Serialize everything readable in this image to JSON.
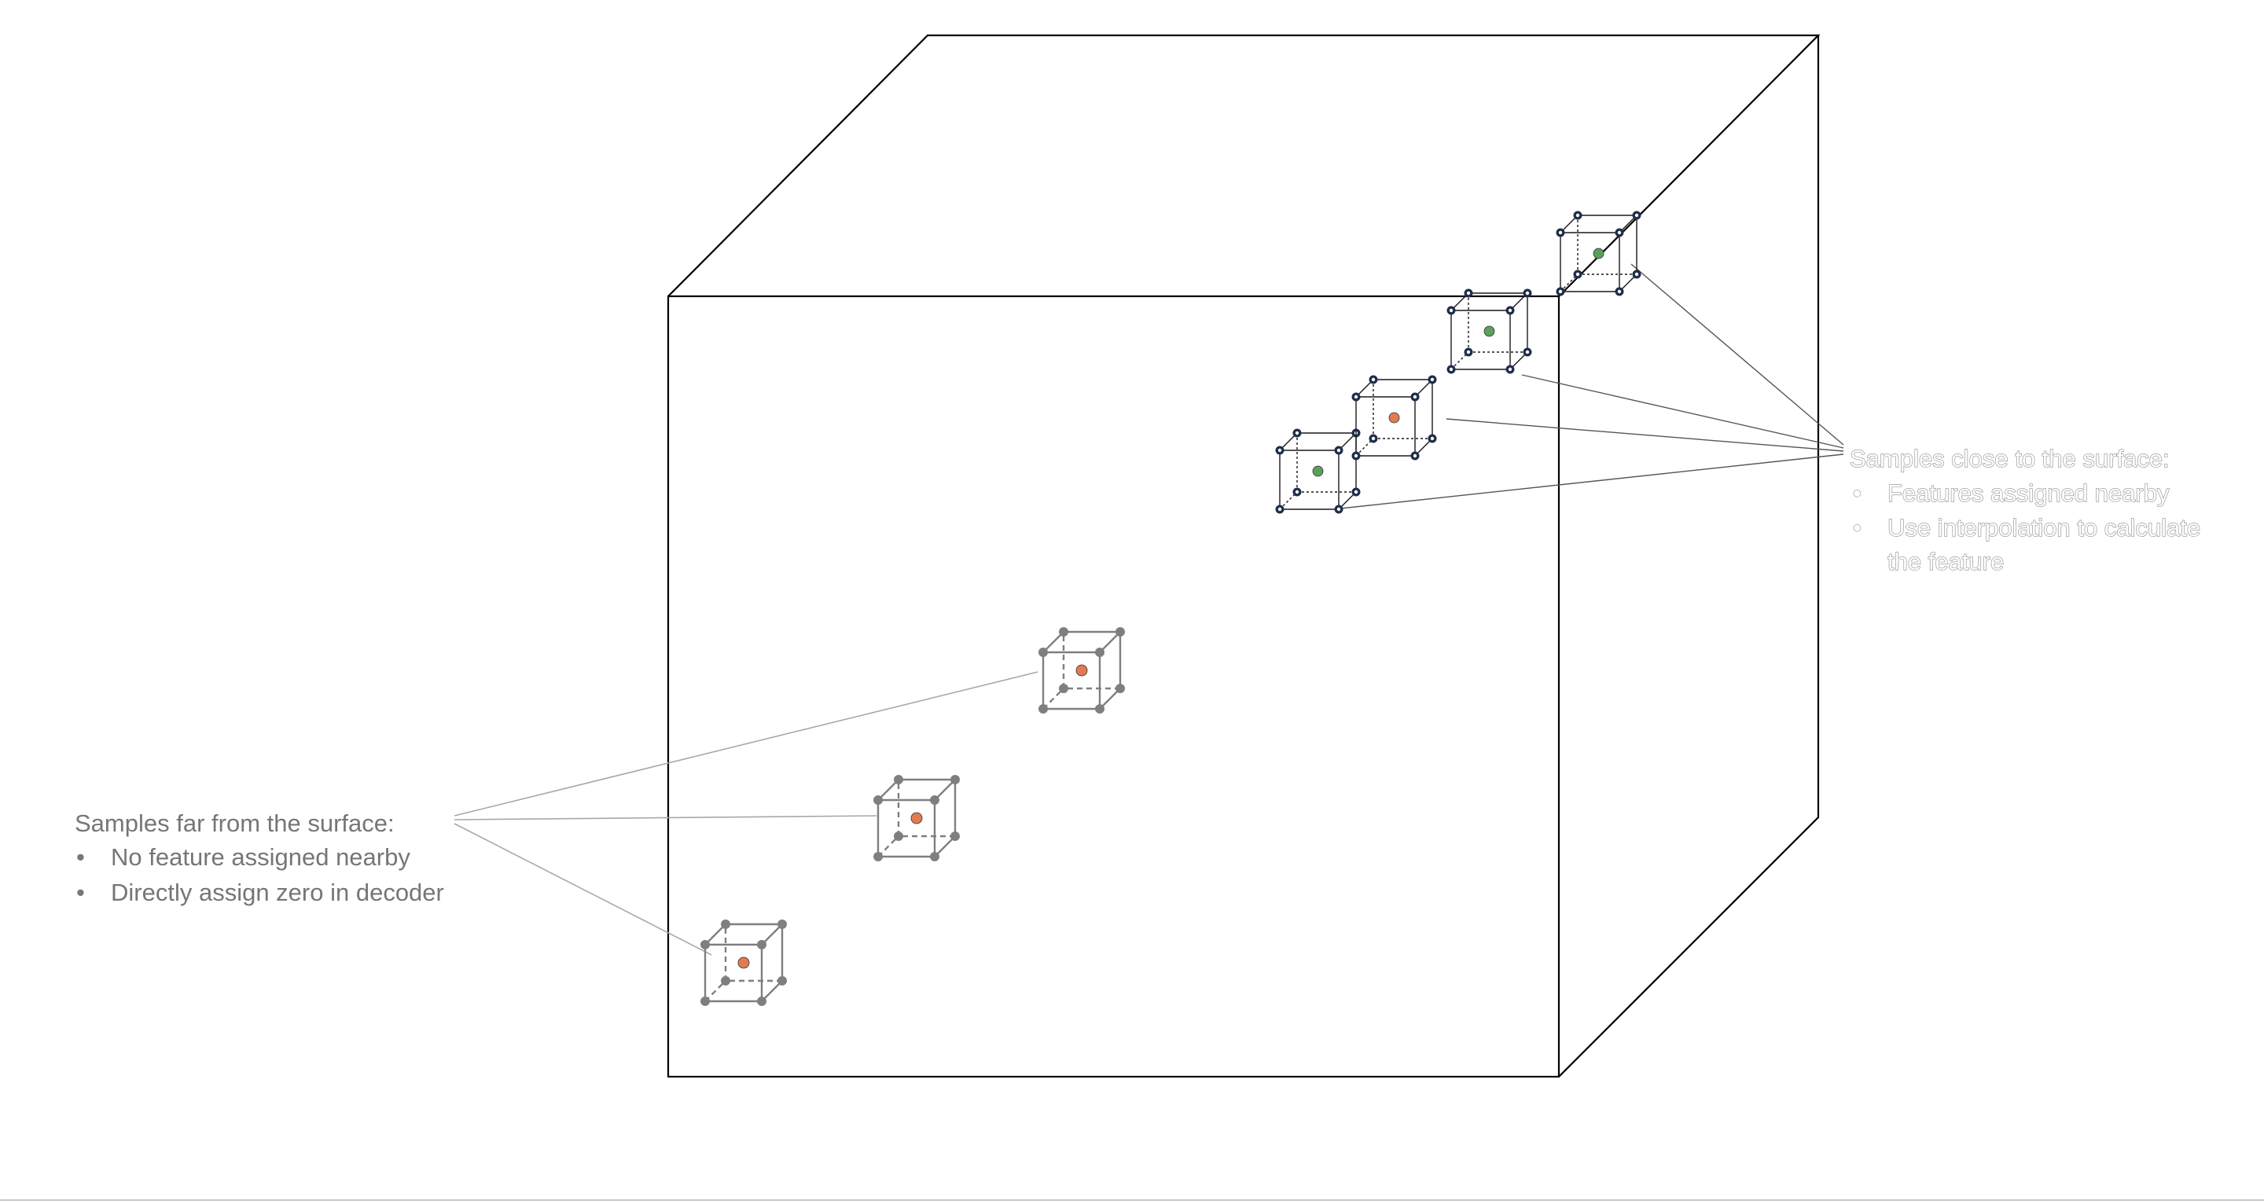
{
  "far_samples": {
    "heading": "Samples far from the surface:",
    "bullet_char": "•",
    "bullets": [
      "No feature assigned nearby",
      "Directly assign zero in decoder"
    ],
    "center_color": "#e07b52",
    "vertex_color": "#7f7f7f"
  },
  "close_samples": {
    "heading": "Samples close to the surface:",
    "bullet_char": "•",
    "bullets": [
      "Features assigned nearby",
      "Use interpolation to calculate",
      "the feature"
    ],
    "center_colors": [
      "#5aa05a",
      "#e07b52",
      "#5aa05a",
      "#5aa05a"
    ],
    "vertex_color": "#1f2d4a"
  },
  "colors": {
    "volume_edges": "#000000",
    "callout_lines": "#a8a8a8",
    "text": "#767676"
  }
}
